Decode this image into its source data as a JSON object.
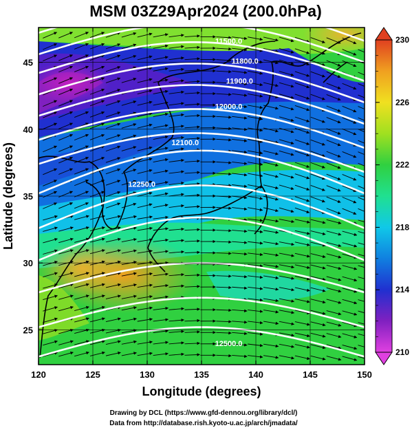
{
  "title": "MSM 03Z29Apr2024 (200.0hPa)",
  "xlabel": "Longitude (degrees)",
  "ylabel": "Latitude  (degrees)",
  "footer": {
    "line1": "Drawing by DCL (https://www.gfd-dennou.org/library/dcl/)",
    "line2": "Data from http://database.rish.kyoto-u.ac.jp/arch/jmadata/"
  },
  "map": {
    "lon_range": [
      120,
      150
    ],
    "lat_range": [
      22.4,
      47.6
    ],
    "lon_ticks": [
      120,
      125,
      130,
      135,
      140,
      145,
      150
    ],
    "lat_ticks": [
      25,
      30,
      35,
      40,
      45
    ],
    "grid": true
  },
  "colorbar": {
    "min": 210,
    "max": 230,
    "ticks": [
      210,
      214,
      218,
      222,
      226,
      230
    ],
    "colors": [
      "#e040e0",
      "#8020c0",
      "#2030d0",
      "#1080e0",
      "#10c8e8",
      "#20e090",
      "#30d040",
      "#a0e020",
      "#f0e020",
      "#f0a020",
      "#e04020"
    ]
  },
  "contours": [
    {
      "label": "11500.0",
      "lon": 137.5,
      "lat": 46.4
    },
    {
      "label": "11800.0",
      "lon": 139.0,
      "lat": 44.9
    },
    {
      "label": "11900.0",
      "lon": 138.5,
      "lat": 43.4
    },
    {
      "label": "12000.0",
      "lon": 137.5,
      "lat": 41.5
    },
    {
      "label": "12100.0",
      "lon": 133.5,
      "lat": 38.8
    },
    {
      "label": "12250.0",
      "lon": 129.5,
      "lat": 35.7
    },
    {
      "label": "12500.0",
      "lon": 137.5,
      "lat": 23.8
    }
  ]
}
